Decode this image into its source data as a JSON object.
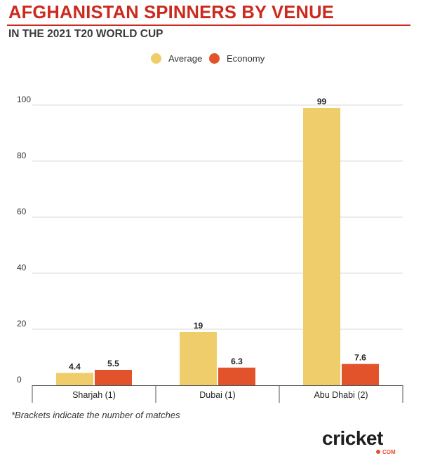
{
  "header": {
    "title": "AFGHANISTAN SPINNERS BY VENUE",
    "subtitle": "IN THE 2021 T20 WORLD CUP"
  },
  "legend": [
    {
      "label": "Average",
      "color": "#eecd6a"
    },
    {
      "label": "Economy",
      "color": "#e2522b"
    }
  ],
  "chart_data": {
    "type": "bar",
    "title": "AFGHANISTAN SPINNERS BY VENUE",
    "subtitle": "IN THE 2021 T20 WORLD CUP",
    "xlabel": "",
    "ylabel": "",
    "categories": [
      "Sharjah (1)",
      "Dubai (1)",
      "Abu Dhabi (2)"
    ],
    "series": [
      {
        "name": "Average",
        "color": "#eecd6a",
        "values": [
          4.4,
          19,
          99
        ],
        "labels": [
          "4.4",
          "19",
          "99"
        ]
      },
      {
        "name": "Economy",
        "color": "#e2522b",
        "values": [
          5.5,
          6.3,
          7.6
        ],
        "labels": [
          "5.5",
          "6.3",
          "7.6"
        ]
      }
    ],
    "ylim": [
      0,
      100
    ],
    "yticks": [
      0,
      20,
      40,
      60,
      80,
      100
    ],
    "grid": true,
    "legend_position": "top-center"
  },
  "footnote": "*Brackets indicate the number of matches",
  "logo": {
    "text": "cricket",
    "suffix": "COM",
    "color": "#1e1e1e",
    "accent": "#e2522b"
  }
}
